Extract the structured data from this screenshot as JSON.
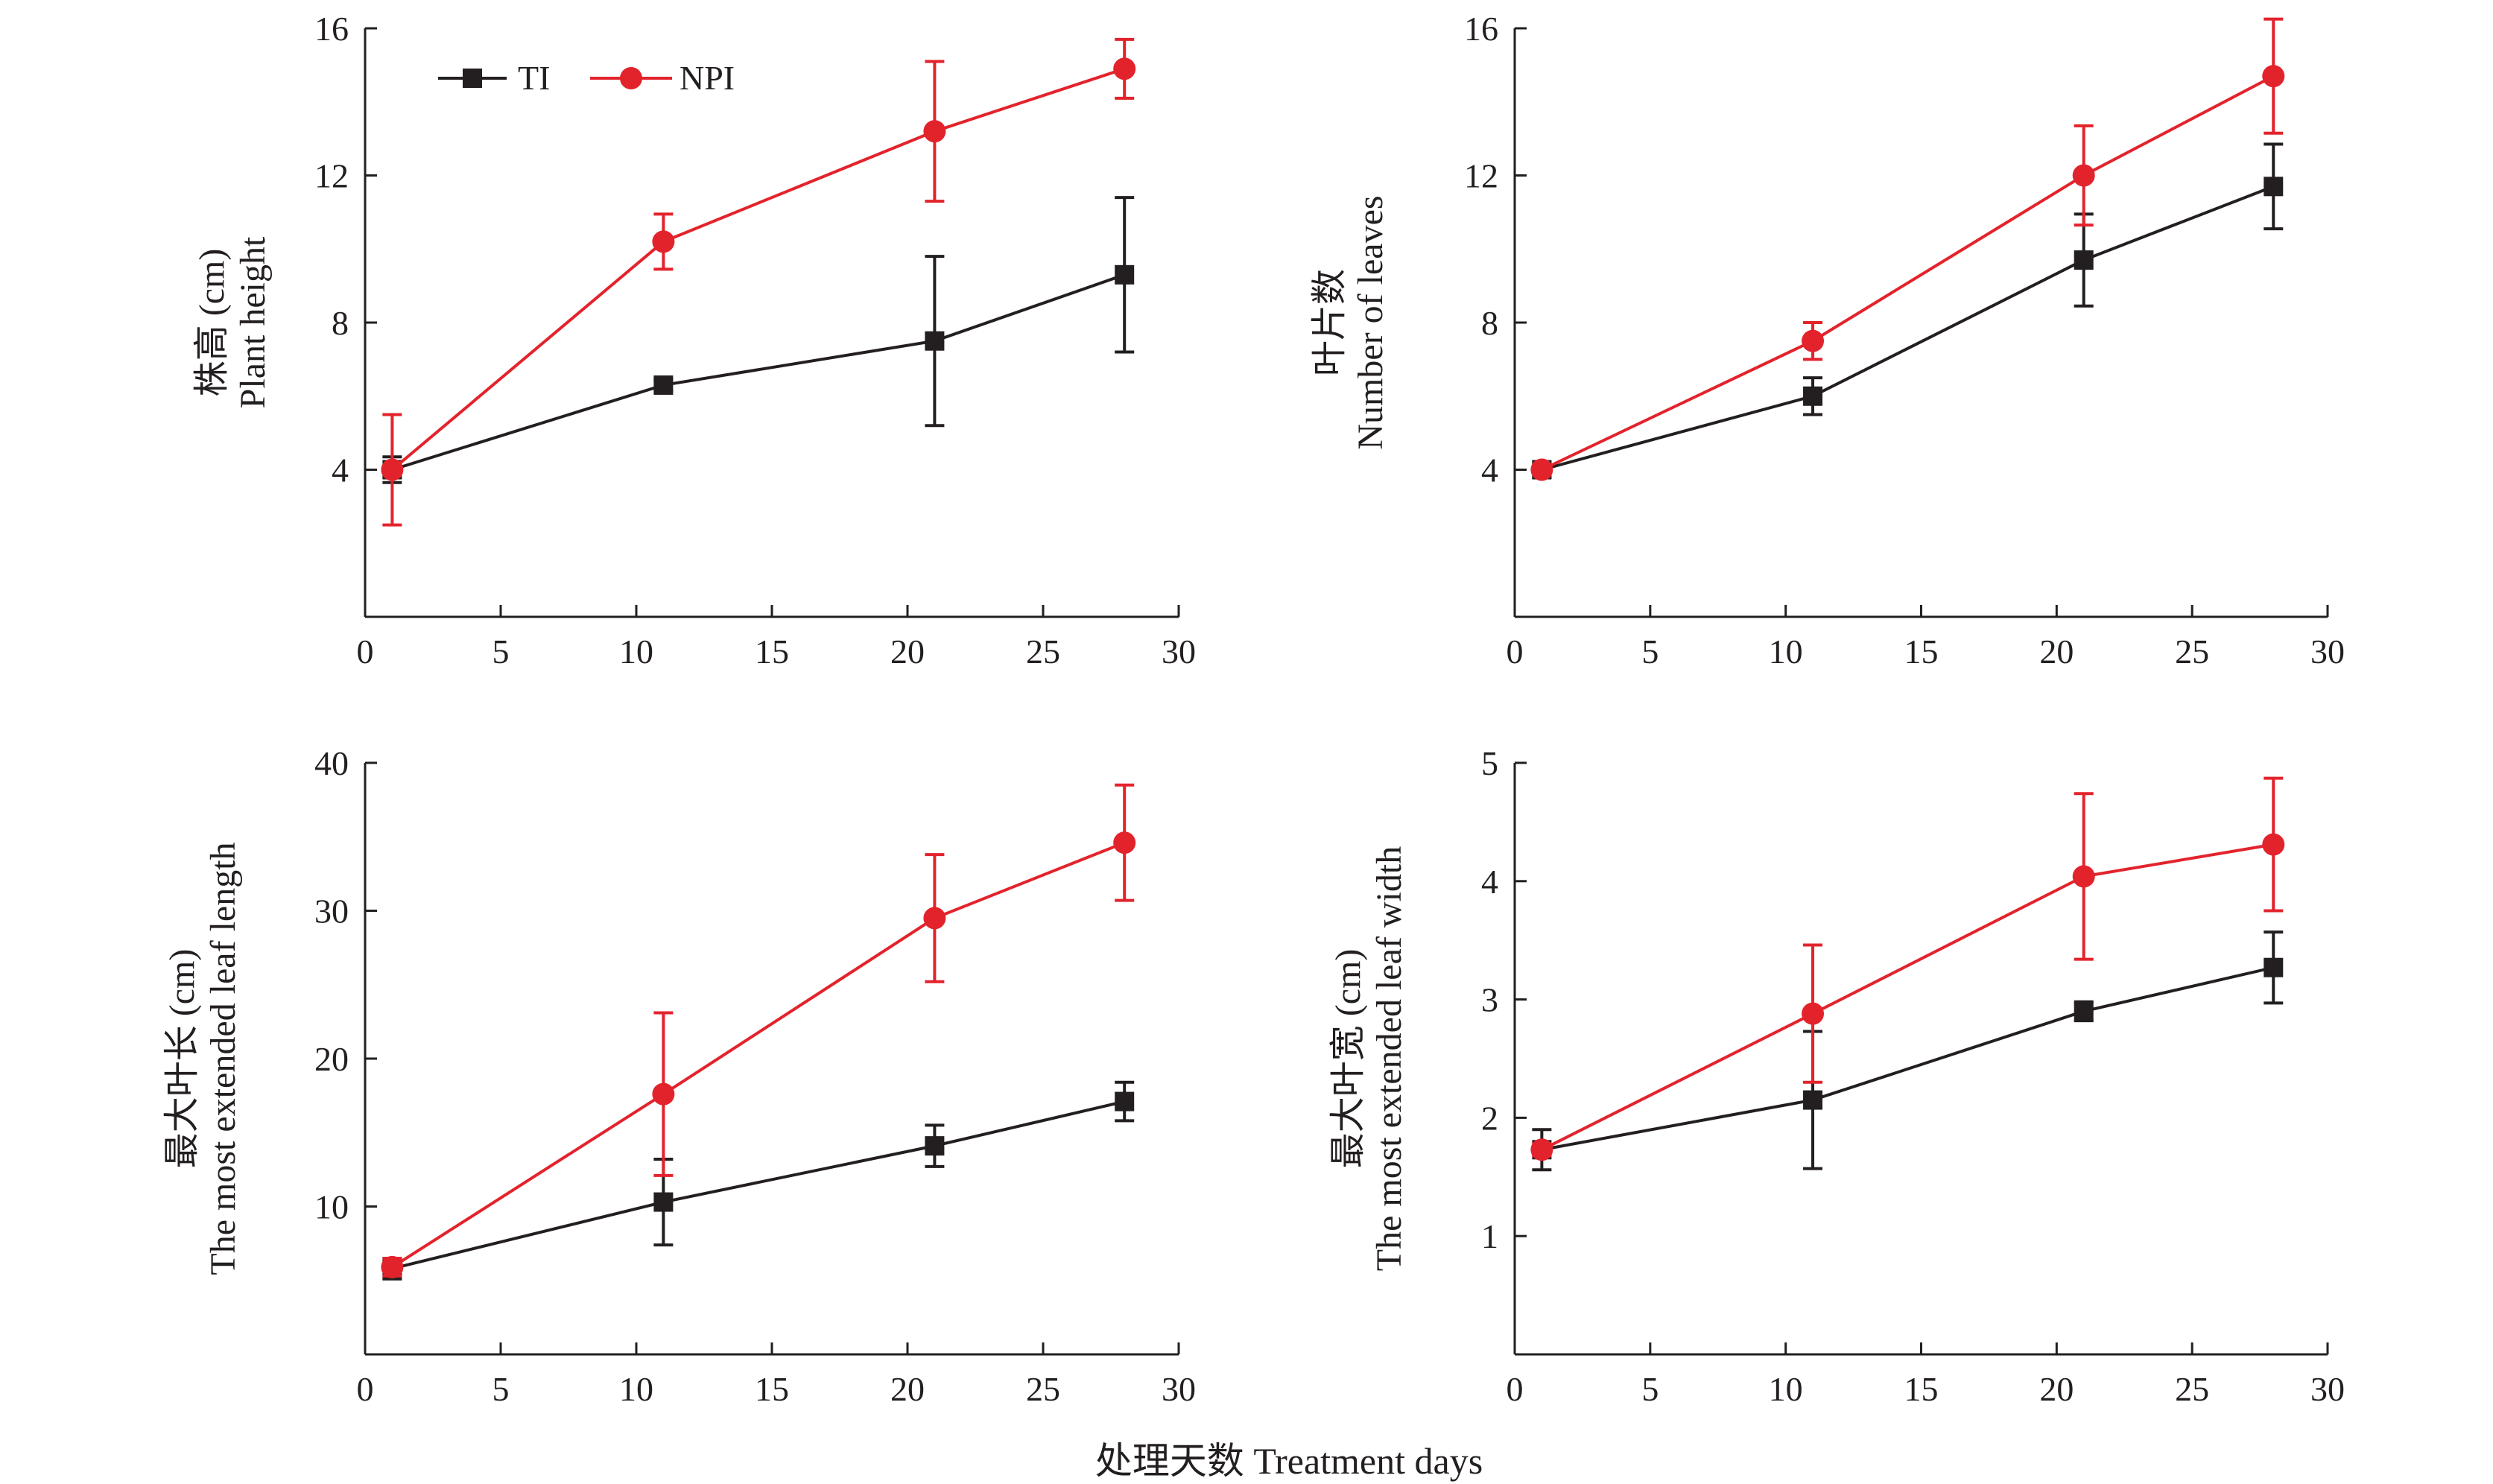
{
  "figure": {
    "xlabel": "处理天数 Treatment days",
    "legend": [
      {
        "name": "TI",
        "color": "#231f20",
        "marker": "square"
      },
      {
        "name": "NPI",
        "color": "#e3232c",
        "marker": "circle"
      }
    ]
  },
  "chart_data": [
    {
      "type": "line",
      "ylabel_cn": "株高 (cm)",
      "ylabel_en": "Plant height",
      "xlim": [
        0,
        30
      ],
      "xticks": [
        0,
        5,
        10,
        15,
        20,
        25,
        30
      ],
      "ylim": [
        0,
        16
      ],
      "yticks": [
        4,
        8,
        12,
        16
      ],
      "x": [
        1,
        11,
        21,
        28
      ],
      "series": [
        {
          "name": "TI",
          "values": [
            4.0,
            6.3,
            7.5,
            9.3
          ],
          "errors": [
            0.35,
            0.15,
            2.3,
            2.1
          ]
        },
        {
          "name": "NPI",
          "values": [
            4.0,
            10.2,
            13.2,
            14.9
          ],
          "errors": [
            1.5,
            0.75,
            1.9,
            0.8
          ]
        }
      ]
    },
    {
      "type": "line",
      "ylabel_cn": "叶片数",
      "ylabel_en": "Number of leaves",
      "xlim": [
        0,
        30
      ],
      "xticks": [
        0,
        5,
        10,
        15,
        20,
        25,
        30
      ],
      "ylim": [
        0,
        16
      ],
      "yticks": [
        4,
        8,
        12,
        16
      ],
      "x": [
        1,
        11,
        21,
        28
      ],
      "series": [
        {
          "name": "TI",
          "values": [
            4.0,
            6.0,
            9.7,
            11.7
          ],
          "errors": [
            0.2,
            0.5,
            1.25,
            1.15
          ]
        },
        {
          "name": "NPI",
          "values": [
            4.0,
            7.5,
            12.0,
            14.7
          ],
          "errors": [
            0.1,
            0.5,
            1.35,
            1.55
          ]
        }
      ]
    },
    {
      "type": "line",
      "ylabel_cn": "最大叶长 (cm)",
      "ylabel_en": "The most extended leaf length",
      "xlim": [
        0,
        30
      ],
      "xticks": [
        0,
        5,
        10,
        15,
        20,
        25,
        30
      ],
      "ylim": [
        0,
        40
      ],
      "yticks": [
        10,
        20,
        30,
        40
      ],
      "x": [
        1,
        11,
        21,
        28
      ],
      "series": [
        {
          "name": "TI",
          "values": [
            5.8,
            10.3,
            14.1,
            17.1
          ],
          "errors": [
            0.7,
            2.9,
            1.4,
            1.3
          ]
        },
        {
          "name": "NPI",
          "values": [
            5.9,
            17.6,
            29.5,
            34.6
          ],
          "errors": [
            0.6,
            5.5,
            4.3,
            3.9
          ]
        }
      ]
    },
    {
      "type": "line",
      "ylabel_cn": "最大叶宽 (cm)",
      "ylabel_en": "The most extended leaf width",
      "xlim": [
        0,
        30
      ],
      "xticks": [
        0,
        5,
        10,
        15,
        20,
        25,
        30
      ],
      "ylim": [
        0,
        5
      ],
      "yticks": [
        1,
        2,
        3,
        4,
        5
      ],
      "x": [
        1,
        11,
        21,
        28
      ],
      "series": [
        {
          "name": "TI",
          "values": [
            1.73,
            2.15,
            2.9,
            3.27
          ],
          "errors": [
            0.17,
            0.58,
            0.08,
            0.3
          ]
        },
        {
          "name": "NPI",
          "values": [
            1.73,
            2.88,
            4.04,
            4.31
          ],
          "errors": [
            0.05,
            0.58,
            0.7,
            0.56
          ]
        }
      ]
    }
  ]
}
